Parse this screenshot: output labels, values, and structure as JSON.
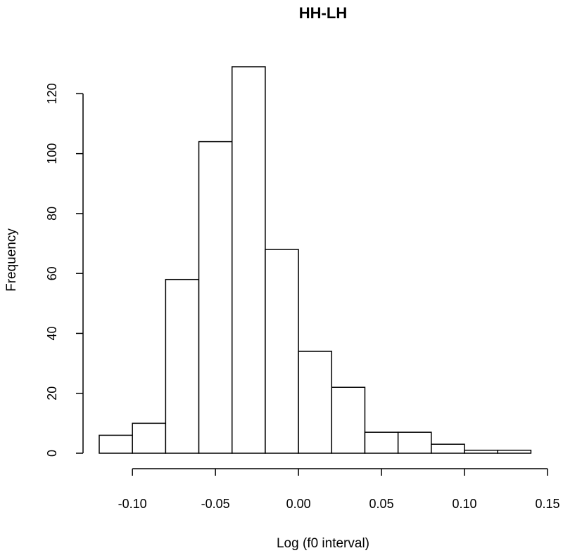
{
  "chart_data": {
    "type": "histogram",
    "title": "HH-LH",
    "xlabel": "Log (f0 interval)",
    "ylabel": "Frequency",
    "bins": [
      {
        "x0": -0.12,
        "x1": -0.1,
        "count": 6
      },
      {
        "x0": -0.1,
        "x1": -0.08,
        "count": 10
      },
      {
        "x0": -0.08,
        "x1": -0.06,
        "count": 58
      },
      {
        "x0": -0.06,
        "x1": -0.04,
        "count": 104
      },
      {
        "x0": -0.04,
        "x1": -0.02,
        "count": 129
      },
      {
        "x0": -0.02,
        "x1": 0.0,
        "count": 68
      },
      {
        "x0": 0.0,
        "x1": 0.02,
        "count": 34
      },
      {
        "x0": 0.02,
        "x1": 0.04,
        "count": 22
      },
      {
        "x0": 0.04,
        "x1": 0.06,
        "count": 7
      },
      {
        "x0": 0.06,
        "x1": 0.08,
        "count": 7
      },
      {
        "x0": 0.08,
        "x1": 0.1,
        "count": 3
      },
      {
        "x0": 0.1,
        "x1": 0.12,
        "count": 1
      },
      {
        "x0": 0.12,
        "x1": 0.14,
        "count": 1
      }
    ],
    "xticks": [
      -0.1,
      -0.05,
      0.0,
      0.05,
      0.1,
      0.15
    ],
    "xtick_labels": [
      "-0.10",
      "-0.05",
      "0.00",
      "0.05",
      "0.10",
      "0.15"
    ],
    "yticks": [
      0,
      20,
      40,
      60,
      80,
      100,
      120
    ],
    "ytick_labels": [
      "0",
      "20",
      "40",
      "60",
      "80",
      "100",
      "120"
    ],
    "xlim": [
      -0.12,
      0.15
    ],
    "ylim": [
      0,
      129
    ],
    "grid": false,
    "legend": "none"
  }
}
